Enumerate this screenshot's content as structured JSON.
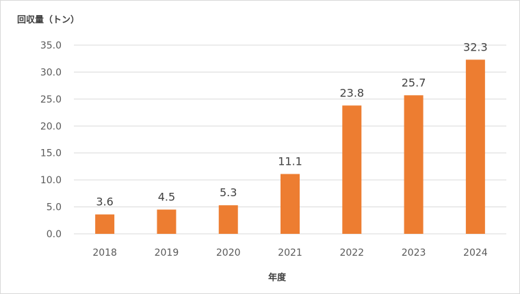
{
  "chart_data": {
    "type": "bar",
    "title": "",
    "ylabel": "回収量（トン）",
    "xlabel": "年度",
    "categories": [
      "2018",
      "2019",
      "2020",
      "2021",
      "2022",
      "2023",
      "2024"
    ],
    "values": [
      3.6,
      4.5,
      5.3,
      11.1,
      23.8,
      25.7,
      32.3
    ],
    "data_labels": [
      "3.6",
      "4.5",
      "5.3",
      "11.1",
      "23.8",
      "25.7",
      "32.3"
    ],
    "yticks": [
      "0.0",
      "5.0",
      "10.0",
      "15.0",
      "20.0",
      "25.0",
      "30.0",
      "35.0"
    ],
    "ylim": [
      0,
      35
    ],
    "grid": true,
    "legend": "none",
    "bar_color": "#ed7d31",
    "grid_color": "#d9d9d9"
  }
}
